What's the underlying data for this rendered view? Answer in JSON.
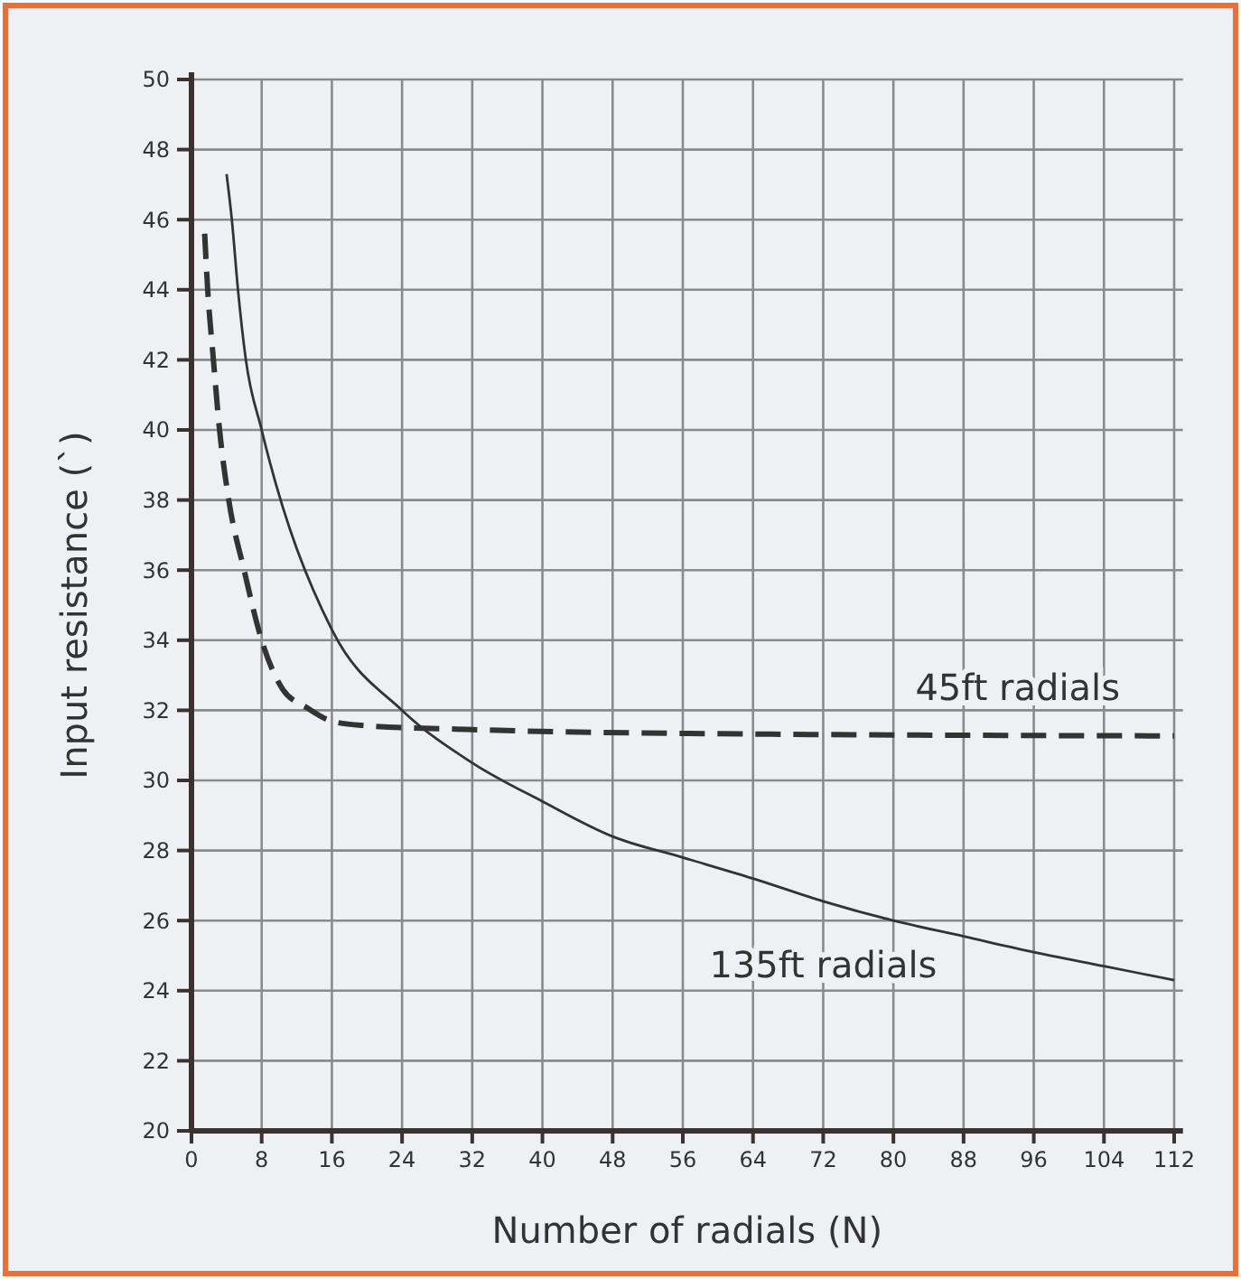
{
  "chart_data": {
    "type": "line",
    "xlabel": "Number of radials (N)",
    "ylabel": "Input resistance (`)",
    "xlim": [
      0,
      113
    ],
    "xticks": [
      0,
      8,
      16,
      24,
      32,
      40,
      48,
      56,
      64,
      72,
      80,
      88,
      96,
      104,
      112
    ],
    "ylim": [
      20,
      50
    ],
    "yticks": [
      20,
      22,
      24,
      26,
      28,
      30,
      32,
      34,
      36,
      38,
      40,
      42,
      44,
      46,
      48,
      50
    ],
    "grid": true,
    "marker": "none",
    "series": [
      {
        "name": "135ft radials",
        "color": "#333333",
        "line_style": "solid",
        "x": [
          4,
          4.6,
          5.3,
          6.2,
          8,
          16,
          24,
          32,
          40,
          48,
          56,
          64,
          72,
          80,
          88,
          96,
          104,
          112
        ],
        "values": [
          47.3,
          46,
          44,
          42,
          40,
          34.3,
          32,
          30.5,
          29.4,
          28.4,
          27.8,
          27.2,
          26.55,
          26,
          25.55,
          25.1,
          24.7,
          24.3
        ]
      },
      {
        "name": "45ft radials",
        "color": "#333333",
        "line_style": "dashed",
        "x": [
          1.5,
          1.85,
          2.5,
          3.2,
          4.25,
          6,
          8,
          10.4,
          13.2,
          15.9,
          19.4,
          32,
          56,
          112
        ],
        "values": [
          45.6,
          44,
          42,
          40,
          38,
          36,
          34,
          32.6,
          32.07,
          31.7,
          31.57,
          31.45,
          31.34,
          31.27
        ]
      }
    ]
  }
}
